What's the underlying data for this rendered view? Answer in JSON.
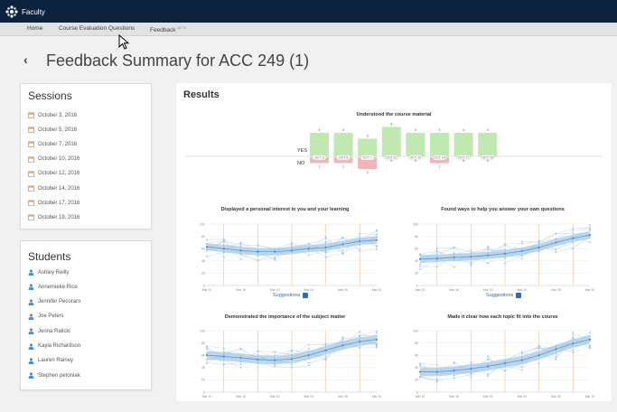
{
  "app": {
    "name": "Faculty"
  },
  "nav": {
    "items": [
      {
        "label": "Home"
      },
      {
        "label": "Course Evaluation Questions"
      },
      {
        "label": "Feedback",
        "badge": "BETA"
      }
    ]
  },
  "page": {
    "title": "Feedback Summary for ACC 249 (1)"
  },
  "sessions": {
    "title": "Sessions",
    "items": [
      "October 3, 2016",
      "October 5, 2016",
      "October 7, 2016",
      "October 10, 2016",
      "October 12, 2016",
      "October 14, 2016",
      "October 17, 2016",
      "October 19, 2016"
    ]
  },
  "students": {
    "title": "Students",
    "items": [
      "Ashley Reilly",
      "Annemieke Rice",
      "Jennifer Pecoraro",
      "Joe Peters",
      "Jenna Ralicki",
      "Kayla Richardson",
      "Lauren Rainey",
      "Stephen petoniak"
    ]
  },
  "results": {
    "title": "Results"
  },
  "colors": {
    "topbar": "#0c2340",
    "yes": "#bfe9b0",
    "no": "#f5b5b8",
    "link": "#2a6fb0",
    "band": "#a9c9e4"
  },
  "chart_data": [
    {
      "type": "bar",
      "title": "Understood the course material",
      "categories": [
        "OCT 3",
        "OCT 5",
        "OCT 7",
        "OCT 10",
        "OCT 12",
        "OCT 14",
        "OCT 17",
        "OCT 19"
      ],
      "series": [
        {
          "name": "YES",
          "values": [
            4,
            4,
            3,
            5,
            4,
            4,
            4,
            4
          ]
        },
        {
          "name": "NO",
          "values": [
            1,
            1,
            2,
            0,
            0,
            1,
            0,
            0
          ]
        }
      ]
    },
    {
      "type": "line",
      "title": "Displayed a personal interest in you and your learning",
      "x": [
        "Mar 12",
        "Mar 14",
        "Mar 16",
        "Mar 18",
        "Mar 20",
        "Mar 22",
        "Mar 24",
        "Mar 26",
        "Mar 28",
        "Mar 30",
        "Mar 31"
      ],
      "ylim": [
        0,
        100
      ],
      "yticks": [
        0,
        20,
        40,
        60,
        80,
        100
      ],
      "mean": [
        63,
        60,
        57,
        55,
        55,
        57,
        60,
        62,
        67,
        72,
        74
      ],
      "band": 6,
      "link": "Suggestions"
    },
    {
      "type": "line",
      "title": "Found ways to help you answer your own questions",
      "x": [
        "Mar 12",
        "Mar 14",
        "Mar 16",
        "Mar 18",
        "Mar 20",
        "Mar 22",
        "Mar 24",
        "Mar 26",
        "Mar 28",
        "Mar 30",
        "Mar 31"
      ],
      "ylim": [
        0,
        100
      ],
      "yticks": [
        0,
        20,
        40,
        60,
        80,
        100
      ],
      "mean": [
        43,
        44,
        46,
        47,
        49,
        52,
        56,
        62,
        70,
        77,
        82
      ],
      "band": 6,
      "link": "Suggestions"
    },
    {
      "type": "line",
      "title": "Demonstrated the importance of the subject matter",
      "x": [
        "Mar 12",
        "Mar 14",
        "Mar 16",
        "Mar 18",
        "Mar 20",
        "Mar 22",
        "Mar 24",
        "Mar 26",
        "Mar 28",
        "Mar 30",
        "Mar 31"
      ],
      "ylim": [
        0,
        100
      ],
      "yticks": [
        0,
        20,
        40,
        60,
        80,
        100
      ],
      "mean": [
        60,
        58,
        56,
        53,
        52,
        54,
        60,
        68,
        76,
        82,
        86
      ],
      "band": 7,
      "link": "Suggestions"
    },
    {
      "type": "line",
      "title": "Made it clear how each topic fit into the course",
      "x": [
        "Mar 12",
        "Mar 14",
        "Mar 16",
        "Mar 18",
        "Mar 20",
        "Mar 22",
        "Mar 24",
        "Mar 26",
        "Mar 28",
        "Mar 30",
        "Mar 31"
      ],
      "ylim": [
        0,
        100
      ],
      "yticks": [
        0,
        20,
        40,
        60,
        80,
        100
      ],
      "mean": [
        33,
        33,
        35,
        38,
        42,
        47,
        52,
        60,
        70,
        79,
        86
      ],
      "band": 7,
      "link": "Suggestions"
    }
  ]
}
